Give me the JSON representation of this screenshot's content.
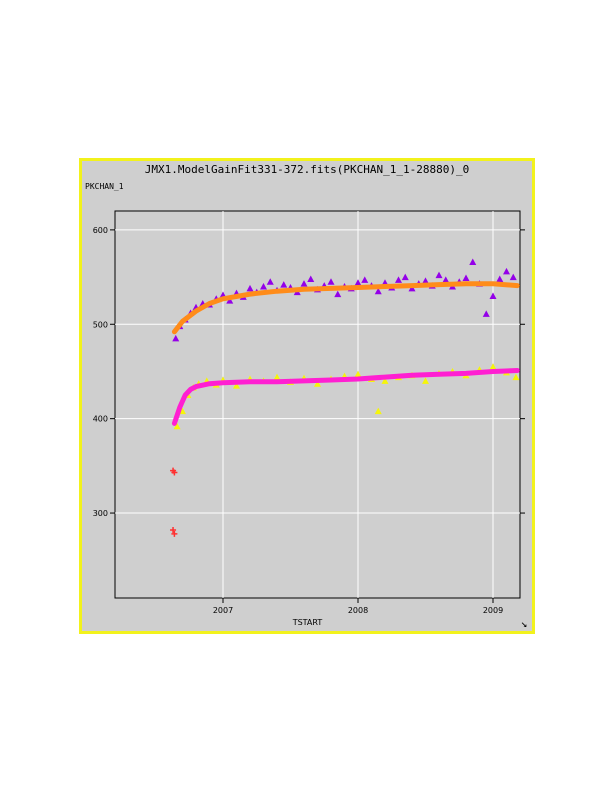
{
  "window": {
    "title": "JMX1.ModelGainFit331-372.fits(PKCHAN_1_1-28880)_0",
    "resize_icon": "resize-corner-icon"
  },
  "colors": {
    "frame_border": "#f2f21c",
    "panel_bg": "#cfcfcf",
    "grid": "#ffffff",
    "series_upper_points": "#9400e8",
    "series_upper_fit": "#ff8c1a",
    "series_lower_points": "#f5f50a",
    "series_lower_fit": "#ff1fd2",
    "outlier_marker": "#ff3030"
  },
  "chart_data": {
    "type": "scatter",
    "title": "JMX1.ModelGainFit331-372.fits(PKCHAN_1_1-28880)_0",
    "xlabel": "TSTART",
    "ylabel": "PKCHAN_1",
    "xlim": [
      2006.2,
      2009.2
    ],
    "ylim": [
      210,
      620
    ],
    "x_ticks": [
      2007,
      2008,
      2009
    ],
    "x_tick_labels": [
      "2007",
      "2008",
      "2009"
    ],
    "y_ticks": [
      300,
      400,
      500,
      600
    ],
    "y_tick_labels": [
      "300",
      "400",
      "500",
      "600"
    ],
    "grid": true,
    "series": [
      {
        "marker": "triangle",
        "color": "#9400e8",
        "x": [
          2006.65,
          2006.68,
          2006.72,
          2006.76,
          2006.8,
          2006.85,
          2006.9,
          2006.95,
          2007.0,
          2007.05,
          2007.1,
          2007.15,
          2007.2,
          2007.25,
          2007.3,
          2007.35,
          2007.4,
          2007.45,
          2007.5,
          2007.55,
          2007.6,
          2007.65,
          2007.7,
          2007.75,
          2007.8,
          2007.85,
          2007.9,
          2007.95,
          2008.0,
          2008.05,
          2008.1,
          2008.15,
          2008.2,
          2008.25,
          2008.3,
          2008.35,
          2008.4,
          2008.45,
          2008.5,
          2008.55,
          2008.6,
          2008.65,
          2008.7,
          2008.75,
          2008.8,
          2008.85,
          2008.9,
          2008.95,
          2009.0,
          2009.05,
          2009.1,
          2009.15
        ],
        "y": [
          485,
          498,
          505,
          512,
          518,
          522,
          521,
          527,
          531,
          525,
          533,
          529,
          538,
          534,
          540,
          545,
          536,
          542,
          539,
          534,
          543,
          548,
          537,
          541,
          545,
          532,
          540,
          538,
          544,
          547,
          541,
          535,
          544,
          539,
          547,
          550,
          538,
          543,
          546,
          541,
          552,
          547,
          540,
          545,
          549,
          566,
          543,
          511,
          530,
          548,
          556,
          550
        ]
      },
      {
        "name": "",
        "marker": "line",
        "color": "#ff8c1a",
        "x": [
          2006.64,
          2006.7,
          2006.8,
          2006.9,
          2007.0,
          2007.2,
          2007.4,
          2007.6,
          2007.8,
          2008.0,
          2008.2,
          2008.4,
          2008.6,
          2008.8,
          2009.0,
          2009.18
        ],
        "y": [
          492,
          503,
          514,
          522,
          527,
          532,
          535,
          537,
          538,
          539,
          540,
          541,
          542,
          543,
          543,
          541
        ]
      },
      {
        "marker": "triangle",
        "color": "#f5f50a",
        "x": [
          2006.66,
          2006.7,
          2006.74,
          2006.78,
          2006.82,
          2006.88,
          2006.95,
          2007.0,
          2007.1,
          2007.2,
          2007.3,
          2007.4,
          2007.5,
          2007.6,
          2007.7,
          2007.8,
          2007.9,
          2008.0,
          2008.1,
          2008.15,
          2008.2,
          2008.3,
          2008.4,
          2008.5,
          2008.6,
          2008.7,
          2008.8,
          2008.9,
          2009.0,
          2009.1,
          2009.17
        ],
        "y": [
          392,
          408,
          425,
          433,
          437,
          440,
          436,
          441,
          435,
          442,
          440,
          444,
          439,
          443,
          437,
          442,
          445,
          447,
          442,
          408,
          440,
          444,
          446,
          440,
          448,
          450,
          446,
          452,
          455,
          449,
          444
        ]
      },
      {
        "marker": "line",
        "color": "#ff1fd2",
        "x": [
          2006.64,
          2006.68,
          2006.72,
          2006.76,
          2006.8,
          2006.9,
          2007.0,
          2007.2,
          2007.4,
          2007.6,
          2007.8,
          2008.0,
          2008.2,
          2008.4,
          2008.6,
          2008.8,
          2009.0,
          2009.18
        ],
        "y": [
          395,
          412,
          425,
          431,
          434,
          437,
          438,
          439,
          439,
          440,
          441,
          442,
          444,
          446,
          447,
          448,
          450,
          451
        ]
      },
      {
        "marker": "cross",
        "color": "#ff3030",
        "x": [
          2006.63,
          2006.64,
          2006.63,
          2006.64
        ],
        "y": [
          345,
          343,
          282,
          278
        ]
      }
    ]
  }
}
